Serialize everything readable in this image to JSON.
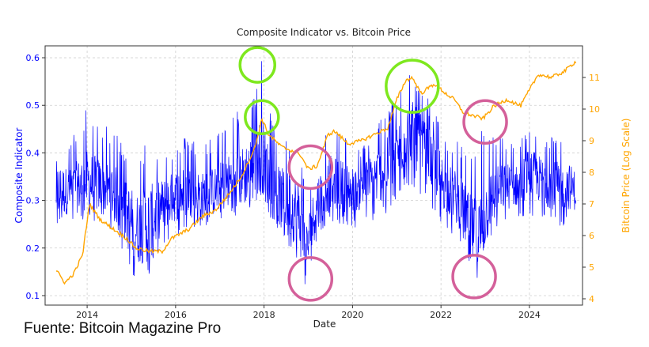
{
  "chart_data": {
    "type": "line",
    "title": "Composite Indicator vs. Bitcoin Price",
    "xlabel": "Date",
    "ylabel_left": "Composite Indicator",
    "ylabel_right": "Bitcoin Price (Log Scale)",
    "xlim": [
      2013.05,
      2025.2
    ],
    "ylim_left": [
      0.08,
      0.625
    ],
    "ylim_right": [
      3.8,
      12.0
    ],
    "x_ticks": [
      2014,
      2016,
      2018,
      2020,
      2022,
      2024
    ],
    "x_tick_labels": [
      "2014",
      "2016",
      "2018",
      "2020",
      "2022",
      "2024"
    ],
    "y_left_ticks": [
      0.1,
      0.2,
      0.3,
      0.4,
      0.5,
      0.6
    ],
    "y_left_tick_labels": [
      "0.1",
      "0.2",
      "0.3",
      "0.4",
      "0.5",
      "0.6"
    ],
    "y_right_ticks": [
      4,
      5,
      6,
      7,
      8,
      9,
      10,
      11
    ],
    "y_right_tick_labels": [
      "4",
      "5",
      "6",
      "7",
      "8",
      "9",
      "10",
      "11"
    ],
    "grid": true,
    "colors": {
      "indicator": "#0000ff",
      "price": "#ffa500",
      "left_axis": "#0000ff",
      "right_axis": "#ffa500",
      "green_circle": "#7ee81e",
      "pink_circle": "#d4609a"
    },
    "series": [
      {
        "name": "Composite Indicator",
        "axis": "left",
        "style": "dense-oscillation",
        "x": [
          2013.3,
          2013.6,
          2014.0,
          2014.3,
          2014.6,
          2014.9,
          2015.1,
          2015.4,
          2015.7,
          2016.0,
          2016.3,
          2016.6,
          2016.9,
          2017.2,
          2017.5,
          2017.8,
          2017.95,
          2018.2,
          2018.5,
          2018.8,
          2018.95,
          2019.2,
          2019.5,
          2019.8,
          2020.1,
          2020.4,
          2020.7,
          2021.0,
          2021.3,
          2021.5,
          2021.8,
          2022.1,
          2022.4,
          2022.7,
          2022.85,
          2023.1,
          2023.4,
          2023.7,
          2024.0,
          2024.3,
          2024.6,
          2024.9,
          2025.05
        ],
        "center": [
          0.32,
          0.32,
          0.34,
          0.33,
          0.32,
          0.27,
          0.24,
          0.25,
          0.29,
          0.31,
          0.32,
          0.31,
          0.32,
          0.34,
          0.35,
          0.38,
          0.4,
          0.32,
          0.3,
          0.27,
          0.19,
          0.3,
          0.34,
          0.33,
          0.32,
          0.34,
          0.36,
          0.4,
          0.45,
          0.42,
          0.38,
          0.33,
          0.3,
          0.24,
          0.22,
          0.3,
          0.33,
          0.33,
          0.36,
          0.34,
          0.33,
          0.33,
          0.32
        ],
        "upper": [
          0.48,
          0.42,
          0.5,
          0.46,
          0.45,
          0.42,
          0.4,
          0.44,
          0.4,
          0.42,
          0.44,
          0.42,
          0.44,
          0.47,
          0.5,
          0.54,
          0.6,
          0.46,
          0.44,
          0.45,
          0.32,
          0.42,
          0.46,
          0.44,
          0.4,
          0.45,
          0.48,
          0.53,
          0.57,
          0.55,
          0.5,
          0.44,
          0.43,
          0.4,
          0.46,
          0.44,
          0.44,
          0.42,
          0.46,
          0.44,
          0.44,
          0.42,
          0.4
        ],
        "lower": [
          0.25,
          0.25,
          0.26,
          0.25,
          0.24,
          0.16,
          0.13,
          0.14,
          0.2,
          0.22,
          0.24,
          0.24,
          0.25,
          0.26,
          0.27,
          0.29,
          0.3,
          0.24,
          0.21,
          0.16,
          0.1,
          0.22,
          0.26,
          0.24,
          0.24,
          0.25,
          0.26,
          0.3,
          0.33,
          0.3,
          0.28,
          0.24,
          0.22,
          0.16,
          0.12,
          0.22,
          0.25,
          0.26,
          0.27,
          0.26,
          0.25,
          0.24,
          0.25
        ]
      },
      {
        "name": "Bitcoin Price",
        "axis": "right",
        "x": [
          2013.3,
          2013.5,
          2013.7,
          2013.9,
          2014.05,
          2014.3,
          2014.6,
          2014.9,
          2015.1,
          2015.4,
          2015.7,
          2015.9,
          2016.3,
          2016.6,
          2016.9,
          2017.2,
          2017.5,
          2017.8,
          2017.95,
          2018.1,
          2018.4,
          2018.8,
          2019.0,
          2019.2,
          2019.45,
          2019.6,
          2019.9,
          2020.2,
          2020.5,
          2020.8,
          2021.0,
          2021.2,
          2021.35,
          2021.55,
          2021.85,
          2022.1,
          2022.3,
          2022.5,
          2022.7,
          2022.95,
          2023.2,
          2023.5,
          2023.8,
          2024.0,
          2024.2,
          2024.5,
          2024.8,
          2024.95,
          2025.05
        ],
        "y": [
          4.9,
          4.5,
          4.8,
          5.4,
          7.0,
          6.5,
          6.2,
          5.9,
          5.6,
          5.5,
          5.5,
          5.9,
          6.2,
          6.6,
          6.8,
          7.3,
          7.9,
          8.8,
          9.7,
          9.2,
          8.8,
          8.6,
          8.1,
          8.2,
          9.2,
          9.3,
          8.9,
          9.0,
          9.2,
          9.4,
          10.3,
          10.9,
          11.0,
          10.5,
          10.8,
          10.5,
          10.3,
          9.9,
          9.8,
          9.7,
          10.1,
          10.3,
          10.1,
          10.6,
          11.1,
          11.0,
          11.2,
          11.4,
          11.5
        ]
      }
    ],
    "annotations": [
      {
        "shape": "circle",
        "color": "green",
        "x": 2017.85,
        "y_left": 0.585
      },
      {
        "shape": "circle",
        "color": "green",
        "x": 2017.95,
        "y_left": 0.475
      },
      {
        "shape": "circle",
        "color": "green",
        "x": 2021.35,
        "y_left": 0.54
      },
      {
        "shape": "circle",
        "color": "pink",
        "x": 2019.05,
        "y_left": 0.37
      },
      {
        "shape": "circle",
        "color": "pink",
        "x": 2019.05,
        "y_left": 0.135
      },
      {
        "shape": "circle",
        "color": "pink",
        "x": 2023.0,
        "y_left": 0.465
      },
      {
        "shape": "circle",
        "color": "pink",
        "x": 2022.75,
        "y_left": 0.14
      }
    ]
  },
  "source_note": "Fuente: Bitcoin Magazine Pro"
}
